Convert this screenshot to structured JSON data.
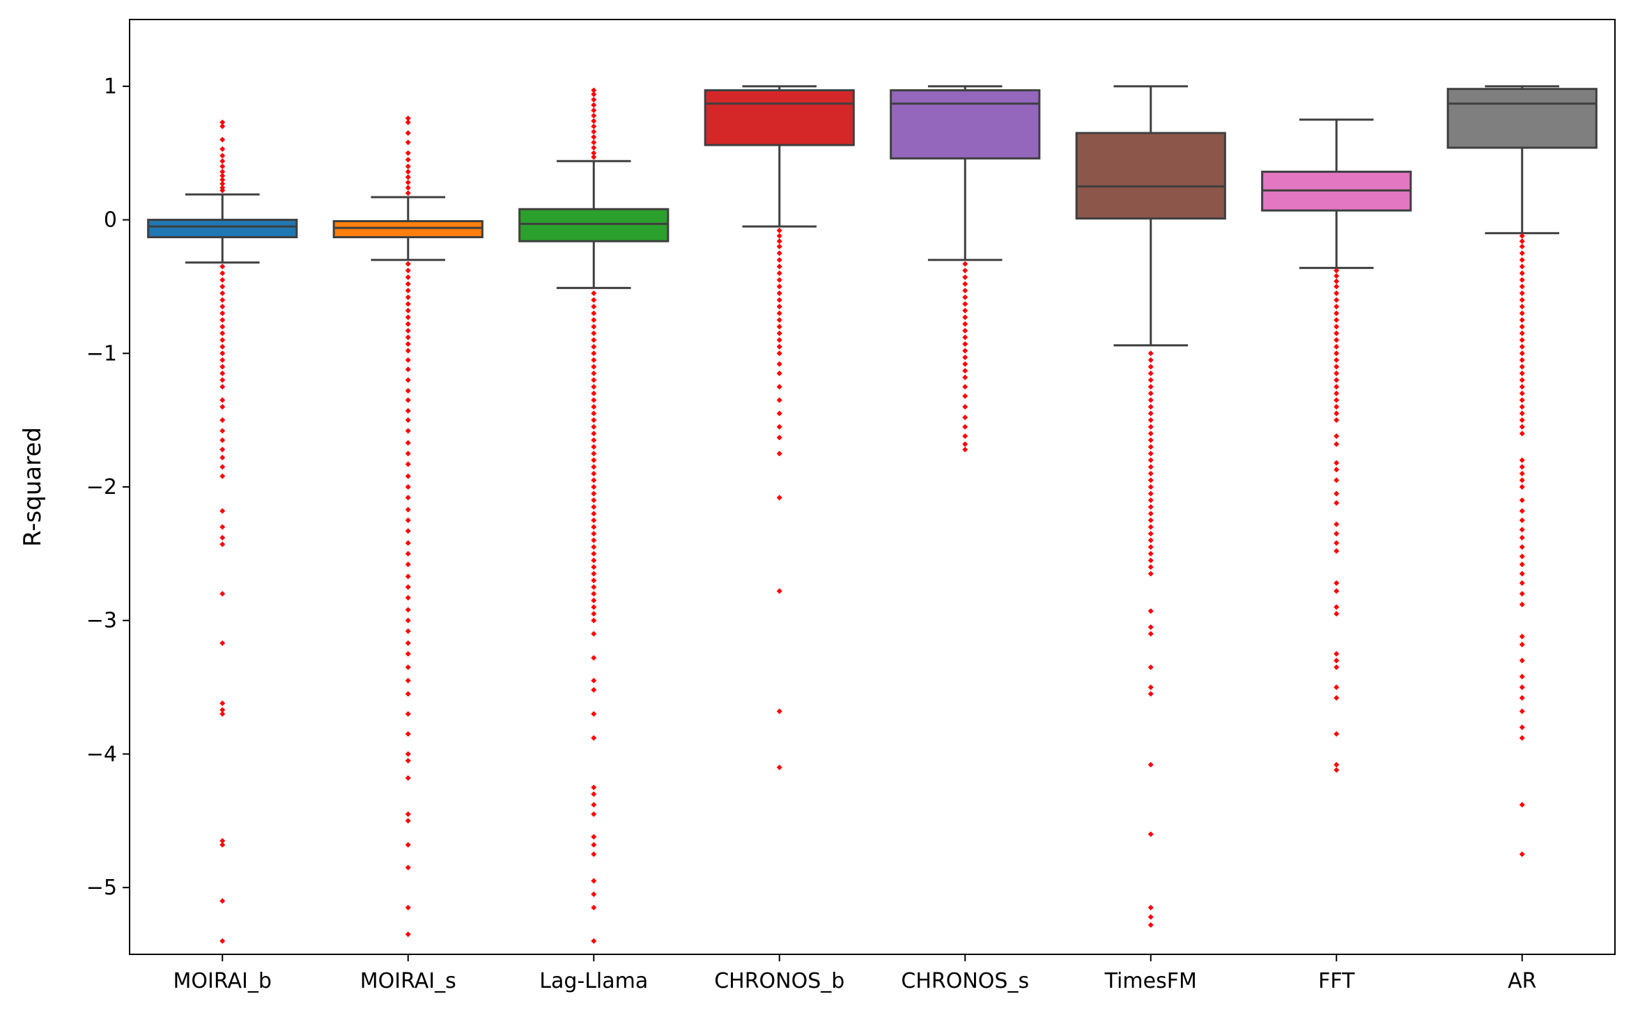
{
  "chart_data": {
    "type": "box",
    "title": "",
    "xlabel": "",
    "ylabel": "R-squared",
    "ylim": [
      -5.5,
      1.5
    ],
    "yticks": [
      1,
      0,
      -1,
      -2,
      -3,
      -4,
      -5
    ],
    "ytick_labels": [
      "1",
      "0",
      "−1",
      "−2",
      "−3",
      "−4",
      "−5"
    ],
    "grid": false,
    "legend": "none",
    "outlier_color": "#ff0000",
    "series": [
      {
        "name": "MOIRAI_b",
        "color": "#1f77b4",
        "whisker_low": -0.32,
        "q1": -0.13,
        "median": -0.05,
        "q3": 0.0,
        "whisker_high": 0.19,
        "outliers": [
          0.73,
          0.7,
          0.6,
          0.53,
          0.48,
          0.44,
          0.4,
          0.36,
          0.33,
          0.3,
          0.27,
          0.24,
          0.22,
          -0.35,
          -0.4,
          -0.45,
          -0.5,
          -0.55,
          -0.6,
          -0.65,
          -0.7,
          -0.75,
          -0.8,
          -0.85,
          -0.9,
          -0.95,
          -1.0,
          -1.05,
          -1.1,
          -1.15,
          -1.2,
          -1.25,
          -1.35,
          -1.4,
          -1.5,
          -1.58,
          -1.65,
          -1.72,
          -1.78,
          -1.85,
          -1.92,
          -2.18,
          -2.3,
          -2.38,
          -2.43,
          -2.8,
          -3.17,
          -3.62,
          -3.67,
          -3.7,
          -4.65,
          -4.68,
          -5.1,
          -5.4
        ]
      },
      {
        "name": "MOIRAI_s",
        "color": "#ff7f0e",
        "whisker_low": -0.3,
        "q1": -0.13,
        "median": -0.06,
        "q3": -0.01,
        "whisker_high": 0.17,
        "outliers": [
          0.76,
          0.73,
          0.65,
          0.58,
          0.5,
          0.45,
          0.4,
          0.36,
          0.32,
          0.28,
          0.24,
          0.2,
          -0.33,
          -0.38,
          -0.43,
          -0.48,
          -0.53,
          -0.58,
          -0.63,
          -0.68,
          -0.73,
          -0.78,
          -0.83,
          -0.88,
          -0.93,
          -0.98,
          -1.05,
          -1.12,
          -1.2,
          -1.28,
          -1.35,
          -1.43,
          -1.5,
          -1.58,
          -1.67,
          -1.75,
          -1.83,
          -1.92,
          -2.0,
          -2.08,
          -2.17,
          -2.25,
          -2.33,
          -2.42,
          -2.5,
          -2.58,
          -2.67,
          -2.75,
          -2.83,
          -2.92,
          -3.0,
          -3.08,
          -3.17,
          -3.25,
          -3.35,
          -3.45,
          -3.55,
          -3.7,
          -3.85,
          -4.0,
          -4.05,
          -4.18,
          -4.45,
          -4.5,
          -4.68,
          -4.85,
          -5.15,
          -5.35
        ]
      },
      {
        "name": "Lag-Llama",
        "color": "#2ca02c",
        "whisker_low": -0.51,
        "q1": -0.16,
        "median": -0.03,
        "q3": 0.08,
        "whisker_high": 0.44,
        "outliers": [
          0.97,
          0.94,
          0.9,
          0.86,
          0.82,
          0.78,
          0.74,
          0.7,
          0.66,
          0.62,
          0.58,
          0.54,
          0.5,
          0.47,
          -0.55,
          -0.6,
          -0.65,
          -0.7,
          -0.75,
          -0.8,
          -0.85,
          -0.9,
          -0.95,
          -1.0,
          -1.05,
          -1.1,
          -1.15,
          -1.2,
          -1.25,
          -1.3,
          -1.35,
          -1.4,
          -1.45,
          -1.5,
          -1.55,
          -1.6,
          -1.65,
          -1.7,
          -1.75,
          -1.8,
          -1.85,
          -1.9,
          -1.95,
          -2.0,
          -2.05,
          -2.1,
          -2.15,
          -2.2,
          -2.25,
          -2.3,
          -2.35,
          -2.4,
          -2.45,
          -2.5,
          -2.55,
          -2.6,
          -2.65,
          -2.7,
          -2.75,
          -2.8,
          -2.85,
          -2.9,
          -2.95,
          -3.0,
          -3.1,
          -3.28,
          -3.45,
          -3.52,
          -3.7,
          -3.88,
          -4.25,
          -4.3,
          -4.38,
          -4.45,
          -4.62,
          -4.68,
          -4.75,
          -4.95,
          -5.05,
          -5.15,
          -5.4
        ]
      },
      {
        "name": "CHRONOS_b",
        "color": "#d62728",
        "whisker_low": -0.05,
        "q1": 0.56,
        "median": 0.87,
        "q3": 0.97,
        "whisker_high": 1.0,
        "outliers": [
          -0.08,
          -0.12,
          -0.16,
          -0.2,
          -0.25,
          -0.3,
          -0.35,
          -0.4,
          -0.45,
          -0.5,
          -0.55,
          -0.6,
          -0.65,
          -0.7,
          -0.75,
          -0.8,
          -0.85,
          -0.9,
          -0.95,
          -1.0,
          -1.08,
          -1.15,
          -1.25,
          -1.35,
          -1.45,
          -1.55,
          -1.63,
          -1.75,
          -2.08,
          -2.78,
          -3.68,
          -4.1
        ]
      },
      {
        "name": "CHRONOS_s",
        "color": "#9467bd",
        "whisker_low": -0.3,
        "q1": 0.46,
        "median": 0.87,
        "q3": 0.97,
        "whisker_high": 1.0,
        "outliers": [
          -0.33,
          -0.38,
          -0.43,
          -0.48,
          -0.53,
          -0.58,
          -0.63,
          -0.68,
          -0.73,
          -0.78,
          -0.83,
          -0.88,
          -0.93,
          -0.98,
          -1.03,
          -1.08,
          -1.13,
          -1.18,
          -1.25,
          -1.32,
          -1.4,
          -1.48,
          -1.55,
          -1.62,
          -1.68,
          -1.72
        ]
      },
      {
        "name": "TimesFM",
        "color": "#8c564b",
        "whisker_low": -0.94,
        "q1": 0.01,
        "median": 0.25,
        "q3": 0.65,
        "whisker_high": 1.0,
        "outliers": [
          -1.0,
          -1.05,
          -1.1,
          -1.15,
          -1.2,
          -1.25,
          -1.3,
          -1.35,
          -1.4,
          -1.45,
          -1.5,
          -1.55,
          -1.6,
          -1.65,
          -1.7,
          -1.75,
          -1.8,
          -1.85,
          -1.9,
          -1.95,
          -2.0,
          -2.05,
          -2.1,
          -2.15,
          -2.2,
          -2.25,
          -2.3,
          -2.35,
          -2.4,
          -2.45,
          -2.5,
          -2.55,
          -2.6,
          -2.65,
          -2.93,
          -3.05,
          -3.1,
          -3.35,
          -3.5,
          -3.55,
          -4.08,
          -4.6,
          -5.15,
          -5.22,
          -5.28
        ]
      },
      {
        "name": "FFT",
        "color": "#e377c2",
        "whisker_low": -0.36,
        "q1": 0.07,
        "median": 0.22,
        "q3": 0.36,
        "whisker_high": 0.75,
        "outliers": [
          -0.38,
          -0.42,
          -0.46,
          -0.5,
          -0.55,
          -0.6,
          -0.65,
          -0.7,
          -0.75,
          -0.8,
          -0.85,
          -0.9,
          -0.95,
          -1.0,
          -1.05,
          -1.1,
          -1.15,
          -1.2,
          -1.25,
          -1.3,
          -1.35,
          -1.4,
          -1.45,
          -1.5,
          -1.62,
          -1.68,
          -1.82,
          -1.87,
          -1.95,
          -2.05,
          -2.12,
          -2.28,
          -2.35,
          -2.42,
          -2.48,
          -2.72,
          -2.78,
          -2.9,
          -2.95,
          -3.25,
          -3.3,
          -3.35,
          -3.5,
          -3.58,
          -3.85,
          -4.08,
          -4.12
        ]
      },
      {
        "name": "AR",
        "color": "#7f7f7f",
        "whisker_low": -0.1,
        "q1": 0.54,
        "median": 0.87,
        "q3": 0.98,
        "whisker_high": 1.0,
        "outliers": [
          -0.12,
          -0.16,
          -0.2,
          -0.25,
          -0.3,
          -0.35,
          -0.4,
          -0.45,
          -0.5,
          -0.55,
          -0.6,
          -0.65,
          -0.7,
          -0.75,
          -0.8,
          -0.85,
          -0.9,
          -0.95,
          -1.0,
          -1.05,
          -1.1,
          -1.15,
          -1.2,
          -1.25,
          -1.3,
          -1.35,
          -1.4,
          -1.45,
          -1.5,
          -1.55,
          -1.6,
          -1.8,
          -1.85,
          -1.9,
          -1.95,
          -2.0,
          -2.1,
          -2.18,
          -2.25,
          -2.32,
          -2.38,
          -2.45,
          -2.52,
          -2.58,
          -2.65,
          -2.72,
          -2.8,
          -2.88,
          -3.12,
          -3.18,
          -3.3,
          -3.42,
          -3.5,
          -3.58,
          -3.68,
          -3.8,
          -3.88,
          -4.38,
          -4.75
        ]
      }
    ]
  }
}
